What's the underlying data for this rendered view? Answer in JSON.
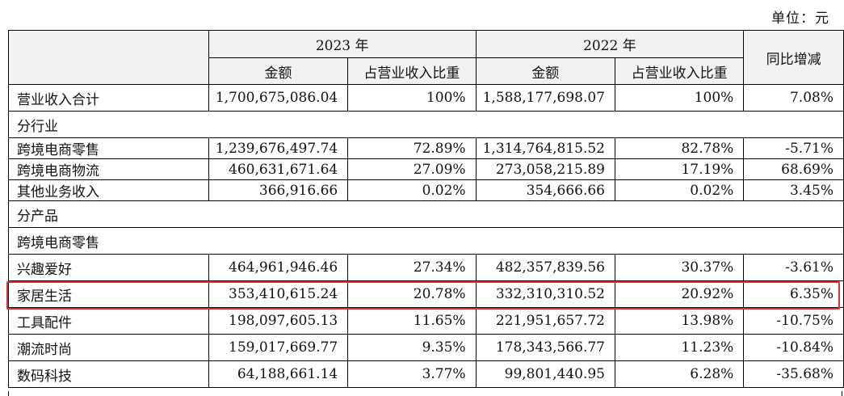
{
  "unit_label": "单位：元",
  "header": {
    "year_2023": "2023 年",
    "year_2022": "2022 年",
    "amount": "金额",
    "share": "占营业收入比重",
    "yoy": "同比增减"
  },
  "total": {
    "label": "营业收入合计",
    "amt23": "1,700,675,086.04",
    "pct23": "100%",
    "amt22": "1,588,177,698.07",
    "pct22": "100%",
    "yoy": "7.08%"
  },
  "section_industry": "分行业",
  "industry": [
    {
      "label": "跨境电商零售",
      "amt23": "1,239,676,497.74",
      "pct23": "72.89%",
      "amt22": "1,314,764,815.52",
      "pct22": "82.78%",
      "yoy": "-5.71%"
    },
    {
      "label": "跨境电商物流",
      "amt23": "460,631,671.64",
      "pct23": "27.09%",
      "amt22": "273,058,215.89",
      "pct22": "17.19%",
      "yoy": "68.69%"
    },
    {
      "label": "其他业务收入",
      "amt23": "366,916.66",
      "pct23": "0.02%",
      "amt22": "354,666.66",
      "pct22": "0.02%",
      "yoy": "3.45%"
    }
  ],
  "section_product": "分产品",
  "section_retail": "跨境电商零售",
  "products": [
    {
      "label": "兴趣爱好",
      "amt23": "464,961,946.46",
      "pct23": "27.34%",
      "amt22": "482,357,839.56",
      "pct22": "30.37%",
      "yoy": "-3.61%"
    },
    {
      "label": "家居生活",
      "amt23": "353,410,615.24",
      "pct23": "20.78%",
      "amt22": "332,310,310.52",
      "pct22": "20.92%",
      "yoy": "6.35%"
    },
    {
      "label": "工具配件",
      "amt23": "198,097,605.13",
      "pct23": "11.65%",
      "amt22": "221,951,657.72",
      "pct22": "13.98%",
      "yoy": "-10.75%"
    },
    {
      "label": "潮流时尚",
      "amt23": "159,017,669.77",
      "pct23": "9.35%",
      "amt22": "178,343,566.77",
      "pct22": "11.23%",
      "yoy": "-10.84%"
    },
    {
      "label": "数码科技",
      "amt23": "64,188,661.14",
      "pct23": "3.77%",
      "amt22": "99,801,440.95",
      "pct22": "6.28%",
      "yoy": "-35.68%"
    }
  ],
  "highlight_color": "#e03030"
}
